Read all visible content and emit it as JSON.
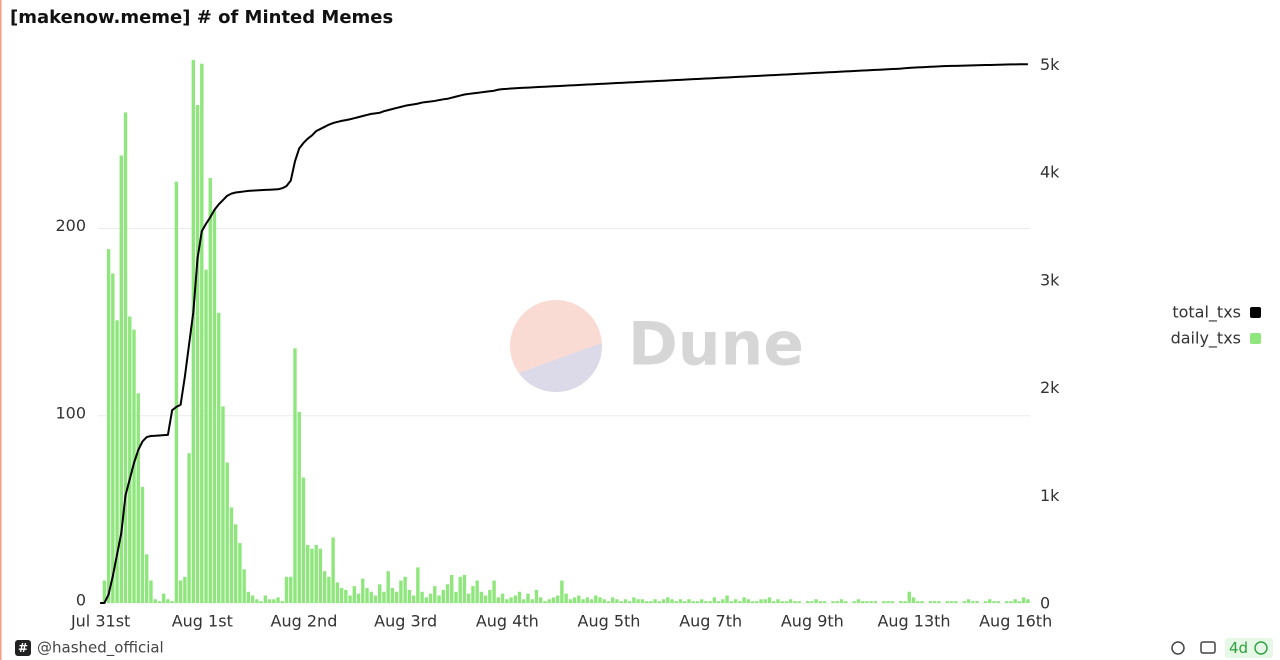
{
  "chart_data": {
    "type": "combo",
    "title": "[makenow.meme] # of Minted Memes",
    "watermark": "Dune",
    "categories": [
      "Jul 31st",
      null,
      null,
      null,
      null,
      null,
      null,
      null,
      null,
      null,
      null,
      null,
      null,
      null,
      null,
      null,
      null,
      null,
      null,
      null,
      null,
      null,
      null,
      null,
      "Aug 1st",
      null,
      null,
      null,
      null,
      null,
      null,
      null,
      null,
      null,
      null,
      null,
      null,
      null,
      null,
      null,
      null,
      null,
      null,
      null,
      null,
      null,
      null,
      null,
      "Aug 2nd",
      null,
      null,
      null,
      null,
      null,
      null,
      null,
      null,
      null,
      null,
      null,
      null,
      null,
      null,
      null,
      null,
      null,
      null,
      null,
      null,
      null,
      null,
      null,
      "Aug 3rd",
      null,
      null,
      null,
      null,
      null,
      null,
      null,
      null,
      null,
      null,
      null,
      null,
      null,
      null,
      null,
      null,
      null,
      null,
      null,
      null,
      null,
      null,
      null,
      "Aug 4th",
      null,
      null,
      null,
      null,
      null,
      null,
      null,
      null,
      null,
      null,
      null,
      null,
      null,
      null,
      null,
      null,
      null,
      null,
      null,
      null,
      null,
      null,
      null,
      "Aug 5th",
      null,
      null,
      null,
      null,
      null,
      null,
      null,
      null,
      null,
      null,
      null,
      null,
      null,
      null,
      null,
      null,
      null,
      null,
      null,
      null,
      null,
      null,
      null,
      "Aug 7th",
      null,
      null,
      null,
      null,
      null,
      null,
      null,
      null,
      null,
      null,
      null,
      null,
      null,
      null,
      null,
      null,
      null,
      null,
      null,
      null,
      null,
      null,
      null,
      "Aug 9th",
      null,
      null,
      null,
      null,
      null,
      null,
      null,
      null,
      null,
      null,
      null,
      null,
      null,
      null,
      null,
      null,
      null,
      null,
      null,
      null,
      null,
      null,
      null,
      "Aug 13th",
      null,
      null,
      null,
      null,
      null,
      null,
      null,
      null,
      null,
      null,
      null,
      null,
      null,
      null,
      null,
      null,
      null,
      null,
      null,
      null,
      null,
      null,
      null,
      "Aug 16th",
      null,
      null,
      null
    ],
    "series": [
      {
        "name": "total_txs",
        "type": "line",
        "axis": "y2",
        "color": "#000000",
        "values": [
          0,
          0,
          80,
          250,
          450,
          650,
          1000,
          1150,
          1300,
          1420,
          1500,
          1540,
          1550,
          1552,
          1555,
          1558,
          1560,
          1790,
          1820,
          1840,
          2100,
          2400,
          2700,
          3200,
          3450,
          3520,
          3580,
          3650,
          3700,
          3740,
          3780,
          3800,
          3810,
          3815,
          3820,
          3825,
          3828,
          3830,
          3832,
          3834,
          3836,
          3838,
          3840,
          3850,
          3870,
          3920,
          4100,
          4220,
          4270,
          4310,
          4340,
          4380,
          4400,
          4420,
          4440,
          4455,
          4465,
          4475,
          4482,
          4490,
          4500,
          4510,
          4520,
          4530,
          4540,
          4545,
          4550,
          4565,
          4575,
          4585,
          4595,
          4605,
          4615,
          4622,
          4628,
          4635,
          4645,
          4650,
          4655,
          4660,
          4668,
          4675,
          4680,
          4690,
          4700,
          4710,
          4720,
          4725,
          4730,
          4735,
          4740,
          4745,
          4750,
          4755,
          4765,
          4770,
          4772,
          4775,
          4778,
          4780,
          4782,
          4784,
          4786,
          4788,
          4790,
          4792,
          4794,
          4796,
          4798,
          4800,
          4802,
          4804,
          4806,
          4808,
          4810,
          4812,
          4814,
          4816,
          4818,
          4820,
          4822,
          4824,
          4826,
          4828,
          4830,
          4832,
          4834,
          4836,
          4838,
          4840,
          4842,
          4844,
          4846,
          4848,
          4850,
          4852,
          4854,
          4856,
          4858,
          4860,
          4862,
          4864,
          4866,
          4868,
          4870,
          4872,
          4874,
          4876,
          4878,
          4880,
          4882,
          4884,
          4886,
          4888,
          4890,
          4892,
          4894,
          4896,
          4898,
          4900,
          4902,
          4904,
          4906,
          4908,
          4910,
          4912,
          4914,
          4916,
          4918,
          4920,
          4922,
          4924,
          4926,
          4928,
          4930,
          4932,
          4934,
          4936,
          4938,
          4940,
          4942,
          4944,
          4946,
          4948,
          4950,
          4952,
          4954,
          4956,
          4958,
          4960,
          4964,
          4967,
          4969,
          4971,
          4973,
          4975,
          4977,
          4979,
          4981,
          4983,
          4984,
          4985,
          4986,
          4987,
          4988,
          4989,
          4990,
          4991,
          4992,
          4993,
          4994,
          4995,
          4996,
          4997,
          4998,
          4999,
          4999,
          5000,
          5000,
          5001
        ]
      },
      {
        "name": "daily_txs",
        "type": "bar",
        "color": "#8fe67d",
        "values": [
          0,
          12,
          189,
          176,
          151,
          239,
          262,
          153,
          146,
          112,
          62,
          26,
          12,
          2,
          1,
          5,
          2,
          1,
          225,
          12,
          14,
          80,
          290,
          266,
          288,
          178,
          227,
          210,
          155,
          105,
          75,
          51,
          42,
          32,
          18,
          6,
          4,
          2,
          1,
          4,
          2,
          2,
          3,
          1,
          14,
          14,
          136,
          102,
          67,
          31,
          29,
          31,
          29,
          17,
          14,
          35,
          11,
          8,
          7,
          4,
          9,
          5,
          13,
          8,
          6,
          4,
          10,
          6,
          17,
          8,
          6,
          12,
          14,
          7,
          4,
          19,
          6,
          3,
          5,
          9,
          4,
          7,
          10,
          15,
          6,
          14,
          15,
          5,
          9,
          12,
          6,
          4,
          7,
          12,
          3,
          5,
          2,
          3,
          4,
          6,
          2,
          5,
          2,
          7,
          3,
          1,
          2,
          3,
          4,
          12,
          5,
          2,
          3,
          4,
          2,
          3,
          2,
          4,
          3,
          2,
          1,
          3,
          2,
          1,
          2,
          1,
          3,
          2,
          2,
          1,
          1,
          2,
          1,
          2,
          3,
          2,
          1,
          2,
          1,
          2,
          1,
          1,
          2,
          1,
          1,
          3,
          1,
          2,
          4,
          1,
          2,
          1,
          3,
          2,
          1,
          1,
          2,
          2,
          3,
          1,
          2,
          1,
          1,
          2,
          1,
          1,
          0,
          1,
          1,
          2,
          1,
          1,
          0,
          1,
          1,
          2,
          1,
          0,
          1,
          2,
          1,
          1,
          1,
          1,
          0,
          1,
          1,
          1,
          0,
          1,
          1,
          6,
          3,
          1,
          1,
          0,
          1,
          1,
          1,
          0,
          1,
          1,
          1,
          0,
          1,
          2,
          1,
          1,
          0,
          1,
          2,
          1,
          1,
          0,
          1,
          1,
          2,
          1,
          3,
          2
        ]
      }
    ],
    "ylim": [
      0,
      290
    ],
    "yticks": [
      0,
      100,
      200
    ],
    "y2lim": [
      0,
      5040
    ],
    "y2ticks": [
      0,
      {
        "value": 1000,
        "label": "1k"
      },
      {
        "value": 2000,
        "label": "2k"
      },
      {
        "value": 3000,
        "label": "3k"
      },
      {
        "value": 4000,
        "label": "4k"
      },
      {
        "value": 5000,
        "label": "5k"
      }
    ],
    "grid": true,
    "legend": "right"
  },
  "footer": {
    "author": "@hashed_official",
    "badge": "4d"
  }
}
